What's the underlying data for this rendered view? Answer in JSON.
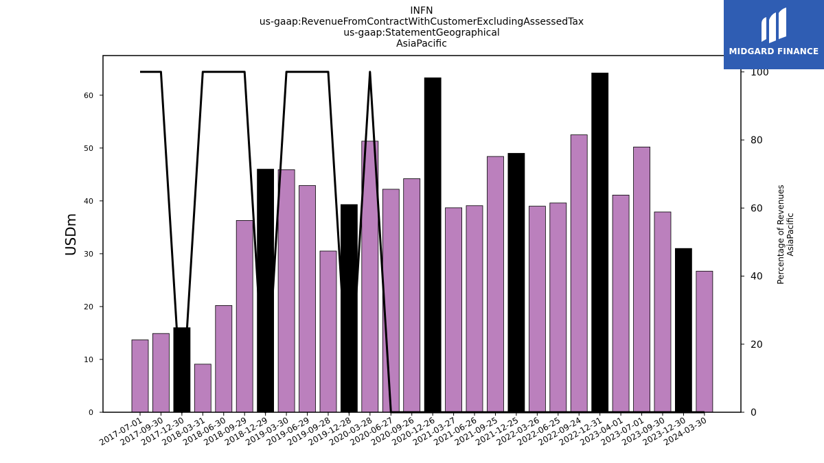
{
  "chart_data": {
    "type": "bar",
    "title_lines": [
      "INFN",
      "us-gaap:RevenueFromContractWithCustomerExcludingAssessedTax",
      "us-gaap:StatementGeographical",
      "AsiaPacific"
    ],
    "ylabel": "USDm",
    "y2label_lines": [
      "Percentage of Revenues",
      "AsiaPacific"
    ],
    "ylim": [
      0,
      67.5
    ],
    "y2lim": [
      0,
      104.8
    ],
    "yticks": [
      0,
      10,
      20,
      30,
      40,
      50,
      60
    ],
    "y2ticks": [
      0,
      20,
      40,
      60,
      80,
      100
    ],
    "categories": [
      "2017-07-01",
      "2017-09-30",
      "2017-12-30",
      "2018-03-31",
      "2018-06-30",
      "2018-09-29",
      "2018-12-29",
      "2019-03-30",
      "2019-06-29",
      "2019-09-28",
      "2019-12-28",
      "2020-03-28",
      "2020-06-27",
      "2020-09-26",
      "2020-12-26",
      "2021-03-27",
      "2021-06-26",
      "2021-09-25",
      "2021-12-25",
      "2022-03-26",
      "2022-06-25",
      "2022-09-24",
      "2022-12-31",
      "2023-04-01",
      "2023-07-01",
      "2023-09-30",
      "2023-12-30",
      "2024-03-30"
    ],
    "series": [
      {
        "type": "bar",
        "values": [
          13.7,
          14.9,
          16.0,
          9.1,
          20.2,
          36.3,
          46.0,
          45.9,
          42.9,
          30.5,
          39.3,
          51.3,
          42.2,
          44.2,
          63.3,
          38.7,
          39.1,
          48.4,
          49.0,
          39.0,
          39.6,
          52.5,
          64.2,
          41.1,
          50.2,
          37.9,
          31.0,
          26.7
        ],
        "highlight": [
          false,
          false,
          true,
          false,
          false,
          false,
          true,
          false,
          false,
          false,
          true,
          false,
          false,
          false,
          true,
          false,
          false,
          false,
          true,
          false,
          false,
          false,
          true,
          false,
          false,
          false,
          true,
          false
        ]
      },
      {
        "type": "line",
        "axis": "right",
        "values": [
          100,
          100,
          0,
          100,
          100,
          100,
          0,
          100,
          100,
          100,
          0,
          100,
          0,
          0,
          0,
          0,
          0,
          0,
          0,
          0,
          0,
          0,
          0,
          0,
          0,
          0,
          0,
          0
        ]
      }
    ],
    "colors": {
      "bar": "#bb80bd",
      "bar_highlight": "#000000",
      "line": "#000000"
    },
    "grid": false,
    "legend": "none"
  },
  "logo": {
    "text": "MIDGARD FINANCE",
    "bg_color": "#2f5db3"
  }
}
